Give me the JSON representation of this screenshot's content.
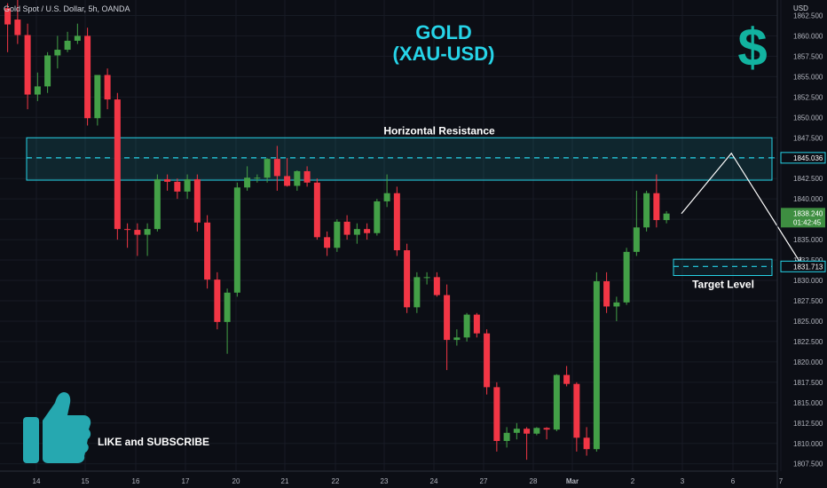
{
  "header": {
    "symbol_text": "Gold Spot / U.S. Dollar, 5h, OANDA"
  },
  "headline": {
    "line1": "GOLD",
    "line2": "(XAU-USD)"
  },
  "call_to_action": "LIKE and SUBSCRIBE",
  "icons": {
    "dollar": "dollar-sign-icon",
    "thumb": "thumbs-up-icon",
    "dollar_glyph": "$"
  },
  "colors": {
    "up": "#43a047",
    "down": "#f23645",
    "accent": "#26d4e8",
    "thumb": "#26a8b0",
    "background": "#0c0e15"
  },
  "chart_data": {
    "type": "candlestick",
    "currency_label": "USD",
    "ylim": [
      1806.6,
      1864.4
    ],
    "y_ticks": [
      1862.5,
      1860,
      1857.5,
      1855,
      1852.5,
      1850,
      1847.5,
      1845,
      1842.5,
      1840,
      1837.5,
      1835,
      1832.5,
      1830,
      1827.5,
      1825,
      1822.5,
      1820,
      1817.5,
      1815,
      1812.5,
      1810,
      1807.5
    ],
    "x_ticks": [
      "14",
      "15",
      "16",
      "17",
      "20",
      "21",
      "22",
      "23",
      "24",
      "27",
      "28",
      "Mar",
      "2",
      "3",
      "6",
      "7"
    ],
    "candles": [
      {
        "o": 1863.4,
        "h": 1864.0,
        "l": 1858.0,
        "c": 1861.4
      },
      {
        "o": 1862.0,
        "h": 1864.5,
        "l": 1859.0,
        "c": 1860.1
      },
      {
        "o": 1860.1,
        "h": 1861.5,
        "l": 1851.0,
        "c": 1852.8
      },
      {
        "o": 1852.8,
        "h": 1855.5,
        "l": 1852.0,
        "c": 1853.8
      },
      {
        "o": 1853.8,
        "h": 1858.0,
        "l": 1853.0,
        "c": 1857.6
      },
      {
        "o": 1857.6,
        "h": 1860.0,
        "l": 1856.0,
        "c": 1858.3
      },
      {
        "o": 1858.3,
        "h": 1860.5,
        "l": 1858.0,
        "c": 1859.4
      },
      {
        "o": 1859.4,
        "h": 1861.5,
        "l": 1859.0,
        "c": 1860.0
      },
      {
        "o": 1860.0,
        "h": 1861.0,
        "l": 1849.0,
        "c": 1849.9
      },
      {
        "o": 1849.9,
        "h": 1855.0,
        "l": 1849.0,
        "c": 1855.2
      },
      {
        "o": 1855.2,
        "h": 1856.0,
        "l": 1851.0,
        "c": 1852.2
      },
      {
        "o": 1852.2,
        "h": 1853.0,
        "l": 1835.0,
        "c": 1836.3
      },
      {
        "o": 1836.3,
        "h": 1837.0,
        "l": 1834.0,
        "c": 1836.2
      },
      {
        "o": 1836.2,
        "h": 1837.0,
        "l": 1833.0,
        "c": 1835.6
      },
      {
        "o": 1835.6,
        "h": 1837.0,
        "l": 1833.0,
        "c": 1836.3
      },
      {
        "o": 1836.3,
        "h": 1843.0,
        "l": 1836.0,
        "c": 1842.4
      },
      {
        "o": 1842.4,
        "h": 1843.0,
        "l": 1841.0,
        "c": 1842.1
      },
      {
        "o": 1842.1,
        "h": 1842.5,
        "l": 1840.0,
        "c": 1840.9
      },
      {
        "o": 1840.9,
        "h": 1843.0,
        "l": 1840.0,
        "c": 1842.4
      },
      {
        "o": 1842.4,
        "h": 1843.0,
        "l": 1836.0,
        "c": 1837.1
      },
      {
        "o": 1837.1,
        "h": 1838.0,
        "l": 1829.0,
        "c": 1830.1
      },
      {
        "o": 1830.1,
        "h": 1831.0,
        "l": 1824.0,
        "c": 1824.9
      },
      {
        "o": 1824.9,
        "h": 1829.0,
        "l": 1821.0,
        "c": 1828.5
      },
      {
        "o": 1828.5,
        "h": 1842.0,
        "l": 1828.0,
        "c": 1841.4
      },
      {
        "o": 1841.4,
        "h": 1844.0,
        "l": 1841.0,
        "c": 1842.6
      },
      {
        "o": 1842.6,
        "h": 1843.0,
        "l": 1842.0,
        "c": 1842.6
      },
      {
        "o": 1842.6,
        "h": 1845.0,
        "l": 1842.0,
        "c": 1844.9
      },
      {
        "o": 1844.9,
        "h": 1846.5,
        "l": 1841.0,
        "c": 1842.8
      },
      {
        "o": 1842.8,
        "h": 1845.0,
        "l": 1841.5,
        "c": 1841.6
      },
      {
        "o": 1841.6,
        "h": 1843.5,
        "l": 1841.0,
        "c": 1843.4
      },
      {
        "o": 1843.4,
        "h": 1844.0,
        "l": 1841.5,
        "c": 1842.0
      },
      {
        "o": 1842.0,
        "h": 1842.5,
        "l": 1835.0,
        "c": 1835.3
      },
      {
        "o": 1835.3,
        "h": 1836.0,
        "l": 1833.0,
        "c": 1834.0
      },
      {
        "o": 1834.0,
        "h": 1837.5,
        "l": 1833.5,
        "c": 1837.2
      },
      {
        "o": 1837.2,
        "h": 1838.0,
        "l": 1835.0,
        "c": 1835.6
      },
      {
        "o": 1835.6,
        "h": 1837.0,
        "l": 1834.5,
        "c": 1836.3
      },
      {
        "o": 1836.3,
        "h": 1837.0,
        "l": 1835.0,
        "c": 1835.8
      },
      {
        "o": 1835.8,
        "h": 1840.0,
        "l": 1835.5,
        "c": 1839.7
      },
      {
        "o": 1839.7,
        "h": 1843.0,
        "l": 1839.0,
        "c": 1840.7
      },
      {
        "o": 1840.7,
        "h": 1841.5,
        "l": 1833.0,
        "c": 1833.7
      },
      {
        "o": 1833.7,
        "h": 1834.5,
        "l": 1826.0,
        "c": 1826.7
      },
      {
        "o": 1826.7,
        "h": 1831.0,
        "l": 1826.0,
        "c": 1830.4
      },
      {
        "o": 1830.4,
        "h": 1831.0,
        "l": 1829.5,
        "c": 1830.4
      },
      {
        "o": 1830.4,
        "h": 1831.0,
        "l": 1828.0,
        "c": 1828.2
      },
      {
        "o": 1828.2,
        "h": 1829.5,
        "l": 1819.0,
        "c": 1822.7
      },
      {
        "o": 1822.7,
        "h": 1824.0,
        "l": 1822.0,
        "c": 1823.0
      },
      {
        "o": 1823.0,
        "h": 1826.0,
        "l": 1822.5,
        "c": 1825.8
      },
      {
        "o": 1825.8,
        "h": 1826.0,
        "l": 1823.0,
        "c": 1823.5
      },
      {
        "o": 1823.5,
        "h": 1824.0,
        "l": 1816.0,
        "c": 1816.9
      },
      {
        "o": 1816.9,
        "h": 1817.5,
        "l": 1809.0,
        "c": 1810.3
      },
      {
        "o": 1810.3,
        "h": 1812.0,
        "l": 1809.5,
        "c": 1811.3
      },
      {
        "o": 1811.3,
        "h": 1812.5,
        "l": 1810.5,
        "c": 1811.8
      },
      {
        "o": 1811.8,
        "h": 1812.0,
        "l": 1808.0,
        "c": 1811.2
      },
      {
        "o": 1811.2,
        "h": 1812.0,
        "l": 1811.0,
        "c": 1811.9
      },
      {
        "o": 1811.9,
        "h": 1812.0,
        "l": 1810.5,
        "c": 1811.7
      },
      {
        "o": 1811.7,
        "h": 1818.5,
        "l": 1811.5,
        "c": 1818.4
      },
      {
        "o": 1818.4,
        "h": 1819.5,
        "l": 1817.0,
        "c": 1817.3
      },
      {
        "o": 1817.3,
        "h": 1817.5,
        "l": 1809.0,
        "c": 1810.7
      },
      {
        "o": 1810.7,
        "h": 1812.0,
        "l": 1808.5,
        "c": 1809.3
      },
      {
        "o": 1809.3,
        "h": 1831.0,
        "l": 1809.0,
        "c": 1829.9
      },
      {
        "o": 1829.9,
        "h": 1831.0,
        "l": 1826.0,
        "c": 1826.8
      },
      {
        "o": 1826.8,
        "h": 1828.0,
        "l": 1825.0,
        "c": 1827.3
      },
      {
        "o": 1827.3,
        "h": 1834.0,
        "l": 1827.0,
        "c": 1833.5
      },
      {
        "o": 1833.5,
        "h": 1841.0,
        "l": 1833.0,
        "c": 1836.5
      },
      {
        "o": 1836.5,
        "h": 1841.0,
        "l": 1836.0,
        "c": 1840.7
      },
      {
        "o": 1840.7,
        "h": 1843.0,
        "l": 1836.5,
        "c": 1837.4
      },
      {
        "o": 1837.4,
        "h": 1838.5,
        "l": 1837.0,
        "c": 1838.2
      }
    ],
    "resistance_zone": {
      "label": "Horizontal Resistance",
      "low": 1842.3,
      "high": 1847.5,
      "level_label": "1845.036",
      "level": 1845.04
    },
    "target_zone": {
      "label": "Target Level",
      "low": 1830.6,
      "high": 1832.6,
      "level_label": "1831.713",
      "level": 1831.71
    },
    "last_price": {
      "price_label": "1838.240",
      "countdown": "01:42:45",
      "value": 1838.24
    },
    "projection": [
      {
        "bar": 67.5,
        "price": 1838.2
      },
      {
        "bar": 72.5,
        "price": 1845.6
      },
      {
        "bar": 79.5,
        "price": 1832.0
      }
    ]
  }
}
